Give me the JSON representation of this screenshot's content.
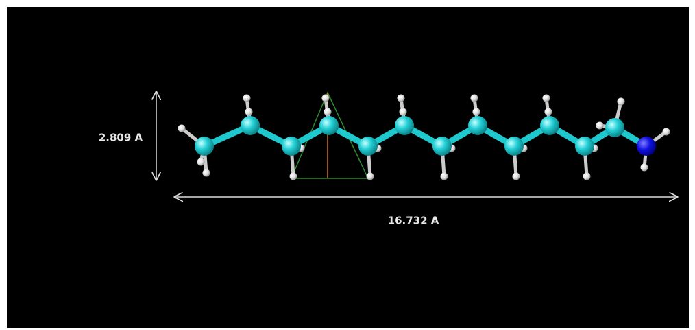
{
  "measurements": {
    "height": "2.809 A",
    "length": "16.732 A"
  }
}
